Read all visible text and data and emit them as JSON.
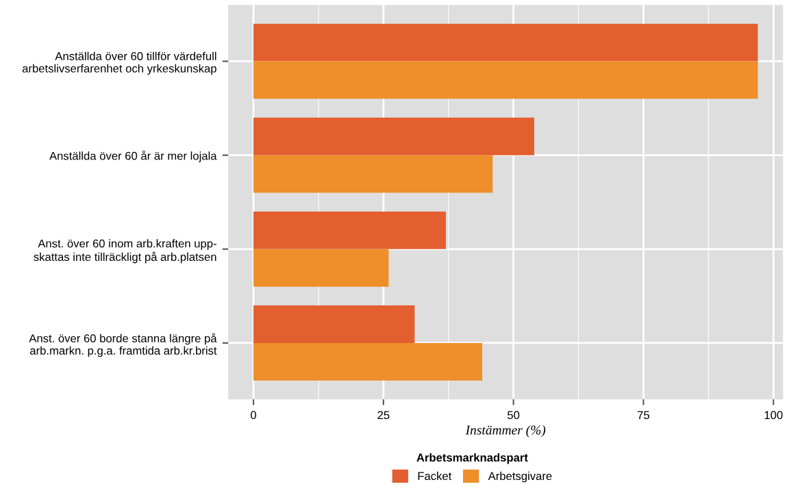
{
  "chart_data": {
    "type": "bar",
    "orientation": "horizontal",
    "categories": [
      "Anställda över 60 tillför värdefull\narbetslivserfarenhet och yrkeskunskap",
      "Anställda över 60 år är mer lojala",
      "Anst. över 60 inom arb.kraften upp-\nskattas inte tillräckligt på arb.platsen",
      "Anst. över 60 borde stanna längre på\narb.markn. p.g.a. framtida arb.kr.brist"
    ],
    "series": [
      {
        "name": "Facket",
        "color": "#e35f30",
        "values": [
          97,
          54,
          37,
          31
        ]
      },
      {
        "name": "Arbetsgivare",
        "color": "#ee8f2b",
        "values": [
          97,
          46,
          26,
          44
        ]
      }
    ],
    "xlim": [
      -4.85,
      101.85
    ],
    "xticks": [
      0,
      25,
      50,
      75,
      100
    ],
    "xlabel": "Instämmer (%)",
    "legend_title": "Arbetsmarknadspart",
    "legend": "bottom",
    "grid": true
  }
}
